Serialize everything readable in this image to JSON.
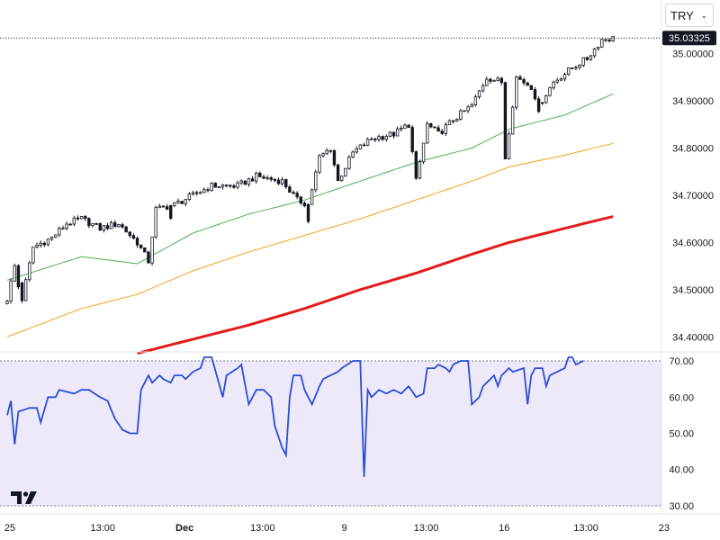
{
  "currency_select": {
    "value": "TRY"
  },
  "colors": {
    "ma_short": "#4caf50",
    "ma_mid": "#f7a21b",
    "ma_long": "#e41a1a",
    "rsi_line": "#2b4fd6",
    "rsi_band_fill": "#ede9f9",
    "last_price_tag_bg": "#131722",
    "candle_up_fill": "#ffffff",
    "candle_down_fill": "#131722"
  },
  "icons": {
    "logo": "tradingview-logo",
    "select_chevron": "chevron-down-icon"
  },
  "chart_data": {
    "type": "candlestick",
    "price_axis": {
      "range": [
        34.37,
        35.11
      ],
      "ticks": [
        34.4,
        34.5,
        34.6,
        34.7,
        34.8,
        34.9,
        35.0
      ],
      "tick_labels": [
        "34.40000",
        "34.50000",
        "34.60000",
        "34.70000",
        "34.80000",
        "34.90000",
        "35.00000"
      ]
    },
    "last_price": {
      "value": 35.03325,
      "label": "35.03325"
    },
    "time_axis": {
      "labels": [
        {
          "i": 0,
          "text": "25"
        },
        {
          "i": 25,
          "text": "13:00"
        },
        {
          "i": 47,
          "text": "Dec"
        },
        {
          "i": 68,
          "text": "13:00"
        },
        {
          "i": 90,
          "text": "9"
        },
        {
          "i": 112,
          "text": "13:00"
        },
        {
          "i": 133,
          "text": "16"
        },
        {
          "i": 155,
          "text": "13:00"
        },
        {
          "i": 176,
          "text": "23"
        }
      ]
    },
    "candles": {
      "count": 164,
      "anchors": [
        [
          0,
          34.48
        ],
        [
          2,
          34.55
        ],
        [
          4,
          34.48
        ],
        [
          7,
          34.59
        ],
        [
          12,
          34.61
        ],
        [
          16,
          34.64
        ],
        [
          20,
          34.65
        ],
        [
          25,
          34.63
        ],
        [
          30,
          34.64
        ],
        [
          35,
          34.6
        ],
        [
          38,
          34.56
        ],
        [
          40,
          34.67
        ],
        [
          45,
          34.68
        ],
        [
          50,
          34.7
        ],
        [
          55,
          34.72
        ],
        [
          62,
          34.72
        ],
        [
          67,
          34.74
        ],
        [
          74,
          34.73
        ],
        [
          78,
          34.69
        ],
        [
          81,
          34.68
        ],
        [
          84,
          34.78
        ],
        [
          87,
          34.8
        ],
        [
          89,
          34.73
        ],
        [
          93,
          34.79
        ],
        [
          98,
          34.82
        ],
        [
          104,
          34.83
        ],
        [
          108,
          34.85
        ],
        [
          110,
          34.73
        ],
        [
          113,
          34.85
        ],
        [
          116,
          34.83
        ],
        [
          120,
          34.86
        ],
        [
          125,
          34.89
        ],
        [
          129,
          34.95
        ],
        [
          133,
          34.94
        ],
        [
          134,
          34.78
        ],
        [
          137,
          34.95
        ],
        [
          141,
          34.93
        ],
        [
          143,
          34.89
        ],
        [
          147,
          34.94
        ],
        [
          152,
          34.97
        ],
        [
          156,
          34.99
        ],
        [
          160,
          35.03
        ],
        [
          163,
          35.033
        ]
      ],
      "spikes": [
        [
          3,
          -0.05
        ],
        [
          44,
          -0.03
        ],
        [
          110,
          -0.06
        ],
        [
          134,
          -0.15
        ],
        [
          143,
          -0.03
        ],
        [
          81,
          -0.04
        ]
      ]
    },
    "moving_averages": [
      {
        "points": [
          [
            0,
            34.52
          ],
          [
            20,
            34.57
          ],
          [
            35,
            34.555
          ],
          [
            50,
            34.62
          ],
          [
            65,
            34.66
          ],
          [
            80,
            34.69
          ],
          [
            95,
            34.73
          ],
          [
            110,
            34.77
          ],
          [
            125,
            34.8
          ],
          [
            135,
            34.84
          ],
          [
            150,
            34.87
          ],
          [
            163,
            34.915
          ]
        ]
      },
      {
        "points": [
          [
            0,
            34.4
          ],
          [
            20,
            34.46
          ],
          [
            35,
            34.49
          ],
          [
            50,
            34.54
          ],
          [
            65,
            34.58
          ],
          [
            80,
            34.615
          ],
          [
            95,
            34.65
          ],
          [
            110,
            34.69
          ],
          [
            125,
            34.73
          ],
          [
            135,
            34.76
          ],
          [
            150,
            34.785
          ],
          [
            163,
            34.81
          ]
        ]
      },
      {
        "points": [
          [
            35,
            34.365
          ],
          [
            50,
            34.395
          ],
          [
            65,
            34.425
          ],
          [
            80,
            34.46
          ],
          [
            95,
            34.5
          ],
          [
            110,
            34.535
          ],
          [
            125,
            34.575
          ],
          [
            135,
            34.6
          ],
          [
            150,
            34.63
          ],
          [
            163,
            34.655
          ]
        ]
      }
    ],
    "rsi": {
      "range": [
        28,
        72
      ],
      "ticks": [
        30,
        40,
        50,
        60,
        70
      ],
      "tick_labels": [
        "30.00",
        "40.00",
        "50.00",
        "60.00",
        "70.00"
      ],
      "band": [
        30,
        70
      ],
      "anchors": [
        [
          0,
          55
        ],
        [
          1,
          59
        ],
        [
          2,
          47
        ],
        [
          3,
          56
        ],
        [
          6,
          57
        ],
        [
          8,
          57
        ],
        [
          9,
          53
        ],
        [
          11,
          60
        ],
        [
          13,
          60
        ],
        [
          14,
          62
        ],
        [
          18,
          61
        ],
        [
          20,
          62
        ],
        [
          22,
          62
        ],
        [
          25,
          60
        ],
        [
          27,
          59
        ],
        [
          29,
          54
        ],
        [
          31,
          51
        ],
        [
          33,
          50
        ],
        [
          35,
          50
        ],
        [
          36,
          62
        ],
        [
          38,
          66
        ],
        [
          39,
          64
        ],
        [
          41,
          66
        ],
        [
          42,
          65
        ],
        [
          44,
          64
        ],
        [
          45,
          66
        ],
        [
          47,
          66
        ],
        [
          48,
          65
        ],
        [
          50,
          67
        ],
        [
          52,
          68
        ],
        [
          53,
          71
        ],
        [
          55,
          71
        ],
        [
          58,
          60
        ],
        [
          59,
          66
        ],
        [
          62,
          68
        ],
        [
          63,
          69
        ],
        [
          65,
          58
        ],
        [
          66,
          60
        ],
        [
          67,
          62
        ],
        [
          69,
          62
        ],
        [
          71,
          60
        ],
        [
          72,
          52
        ],
        [
          74,
          46
        ],
        [
          75,
          44
        ],
        [
          76,
          60
        ],
        [
          77,
          66
        ],
        [
          79,
          66
        ],
        [
          80,
          62
        ],
        [
          82,
          58
        ],
        [
          84,
          63
        ],
        [
          85,
          65
        ],
        [
          87,
          66
        ],
        [
          89,
          67
        ],
        [
          90,
          68
        ],
        [
          93,
          70
        ],
        [
          95,
          70
        ],
        [
          96,
          38
        ],
        [
          97,
          62
        ],
        [
          98,
          60
        ],
        [
          100,
          62
        ],
        [
          102,
          61
        ],
        [
          104,
          62
        ],
        [
          106,
          61
        ],
        [
          108,
          63
        ],
        [
          110,
          60
        ],
        [
          112,
          61
        ],
        [
          113,
          68
        ],
        [
          115,
          68
        ],
        [
          116,
          69
        ],
        [
          118,
          68
        ],
        [
          119,
          67
        ],
        [
          120,
          69
        ],
        [
          122,
          70
        ],
        [
          124,
          70
        ],
        [
          125,
          58
        ],
        [
          127,
          60
        ],
        [
          128,
          63
        ],
        [
          130,
          65
        ],
        [
          131,
          66
        ],
        [
          132,
          63
        ],
        [
          133,
          66
        ],
        [
          135,
          68
        ],
        [
          136,
          67
        ],
        [
          139,
          68
        ],
        [
          140,
          58
        ],
        [
          141,
          66
        ],
        [
          142,
          68
        ],
        [
          144,
          68
        ],
        [
          145,
          63
        ],
        [
          146,
          66
        ],
        [
          148,
          67
        ],
        [
          150,
          68
        ],
        [
          151,
          71
        ],
        [
          152,
          71
        ],
        [
          153,
          69
        ],
        [
          155,
          70
        ]
      ]
    }
  }
}
